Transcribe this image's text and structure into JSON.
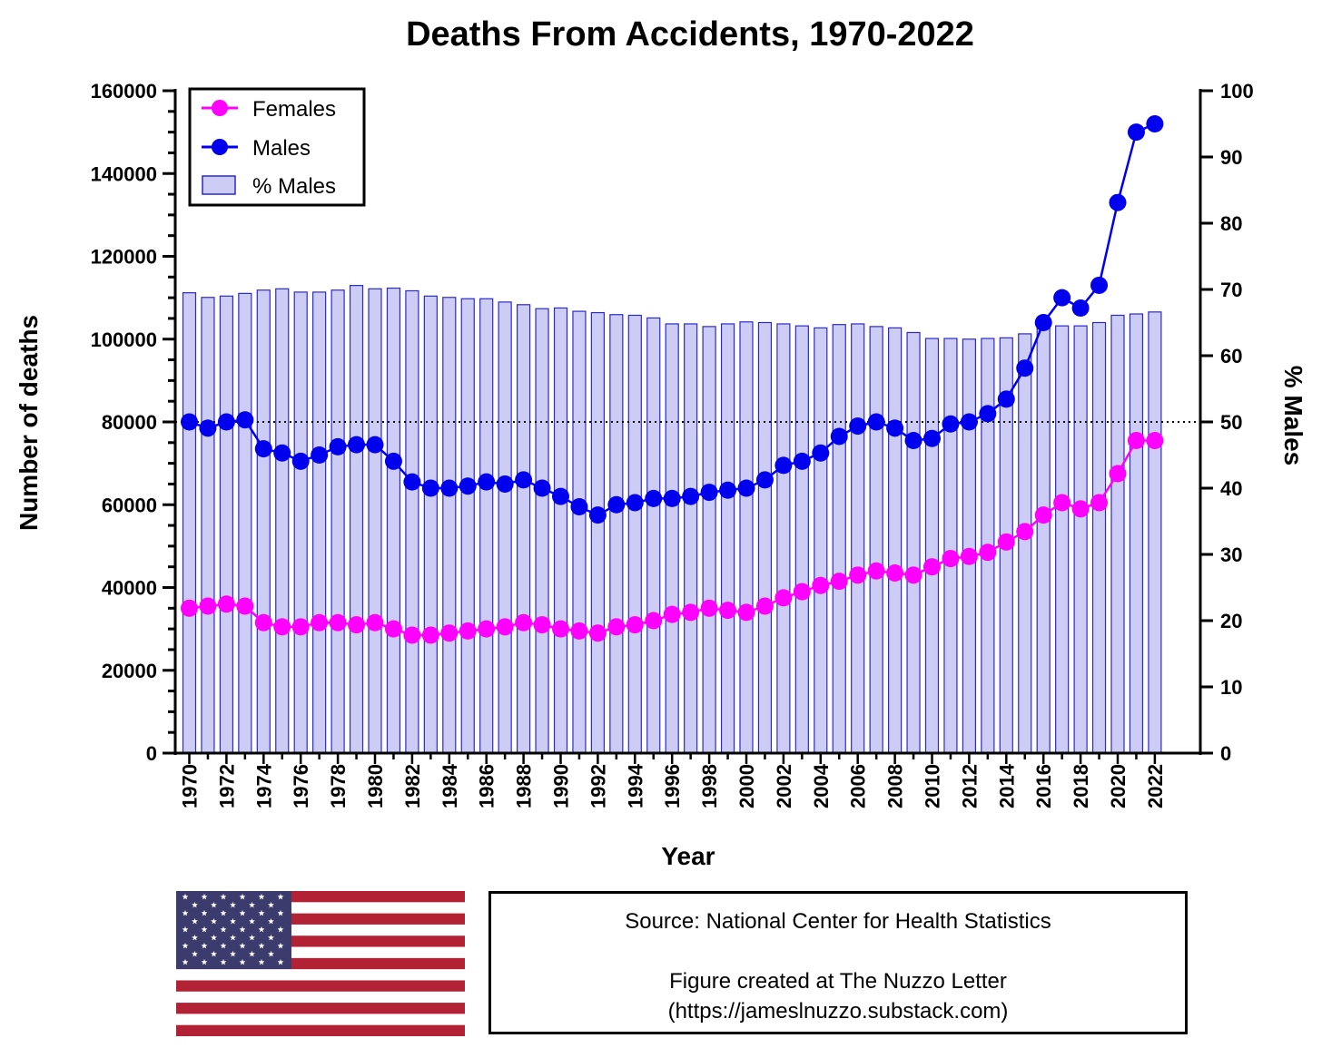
{
  "chart_data": {
    "type": "bar+line",
    "title": "Deaths From Accidents, 1970-2022",
    "xlabel": "Year",
    "ylabel_left": "Number of deaths",
    "ylabel_right": "% Males",
    "ylim_left": [
      0,
      160000
    ],
    "ylim_right": [
      0,
      100
    ],
    "left_ticks": [
      "0",
      "20000",
      "40000",
      "60000",
      "80000",
      "100000",
      "120000",
      "140000",
      "160000"
    ],
    "right_ticks": [
      "0",
      "10",
      "20",
      "30",
      "40",
      "50",
      "60",
      "70",
      "80",
      "90",
      "100"
    ],
    "x_tick_labels": [
      "1970",
      "1972",
      "1974",
      "1976",
      "1978",
      "1980",
      "1982",
      "1984",
      "1986",
      "1988",
      "1990",
      "1992",
      "1994",
      "1996",
      "1998",
      "2000",
      "2002",
      "2004",
      "2006",
      "2008",
      "2010",
      "2012",
      "2014",
      "2016",
      "2018",
      "2020",
      "2022"
    ],
    "reference_line": {
      "axis": "right",
      "value": 50,
      "style": "dotted"
    },
    "legend": {
      "placement": "top-left",
      "entries": [
        "Females",
        "Males",
        "% Males"
      ]
    },
    "x": [
      1970,
      1971,
      1972,
      1973,
      1974,
      1975,
      1976,
      1977,
      1978,
      1979,
      1980,
      1981,
      1982,
      1983,
      1984,
      1985,
      1986,
      1987,
      1988,
      1989,
      1990,
      1991,
      1992,
      1993,
      1994,
      1995,
      1996,
      1997,
      1998,
      1999,
      2000,
      2001,
      2002,
      2003,
      2004,
      2005,
      2006,
      2007,
      2008,
      2009,
      2010,
      2011,
      2012,
      2013,
      2014,
      2015,
      2016,
      2017,
      2018,
      2019,
      2020,
      2021,
      2022
    ],
    "series": [
      {
        "name": "Females",
        "kind": "line",
        "axis": "left",
        "color": "#ff00ff",
        "values": [
          35000,
          35500,
          36000,
          35500,
          31500,
          30500,
          30500,
          31500,
          31500,
          31000,
          31500,
          30000,
          28500,
          28500,
          29000,
          29500,
          30000,
          30500,
          31500,
          31000,
          30000,
          29500,
          29000,
          30500,
          31000,
          32000,
          33500,
          34000,
          35000,
          34500,
          34000,
          35500,
          37500,
          39000,
          40500,
          41500,
          43000,
          44000,
          43500,
          43000,
          45000,
          47000,
          47500,
          48500,
          51000,
          53500,
          57500,
          60500,
          59000,
          60500,
          67500,
          75500,
          75500
        ]
      },
      {
        "name": "Males",
        "kind": "line",
        "axis": "left",
        "color": "#0000ee",
        "values": [
          80000,
          78500,
          80000,
          80500,
          73500,
          72500,
          70500,
          72000,
          74000,
          74500,
          74500,
          70500,
          65500,
          64000,
          64000,
          64500,
          65500,
          65000,
          66000,
          64000,
          62000,
          59500,
          57500,
          60000,
          60500,
          61500,
          61500,
          62000,
          63000,
          63500,
          64000,
          66000,
          69500,
          70500,
          72500,
          76500,
          79000,
          80000,
          78500,
          75500,
          76000,
          79500,
          80000,
          82000,
          85500,
          93000,
          104000,
          110000,
          107500,
          113000,
          133000,
          150000,
          152000
        ]
      },
      {
        "name": "% Males",
        "kind": "bar",
        "axis": "right",
        "color": "#ccccf5",
        "values": [
          69.5,
          68.8,
          69.0,
          69.4,
          69.9,
          70.1,
          69.6,
          69.6,
          69.9,
          70.6,
          70.1,
          70.2,
          69.8,
          69.0,
          68.8,
          68.6,
          68.6,
          68.1,
          67.7,
          67.1,
          67.2,
          66.7,
          66.5,
          66.2,
          66.1,
          65.7,
          64.8,
          64.8,
          64.4,
          64.8,
          65.1,
          65.0,
          64.8,
          64.5,
          64.2,
          64.7,
          64.8,
          64.4,
          64.2,
          63.5,
          62.6,
          62.6,
          62.5,
          62.6,
          62.7,
          63.3,
          64.5,
          64.5,
          64.5,
          65.0,
          66.1,
          66.3,
          66.6
        ]
      }
    ]
  },
  "footer": {
    "flag_icon": "us-flag-icon",
    "source_text": "Source: National Center for Health Statistics",
    "credit_text": "Figure created at The Nuzzo Letter",
    "url_text": "(https://jameslnuzzo.substack.com)"
  }
}
